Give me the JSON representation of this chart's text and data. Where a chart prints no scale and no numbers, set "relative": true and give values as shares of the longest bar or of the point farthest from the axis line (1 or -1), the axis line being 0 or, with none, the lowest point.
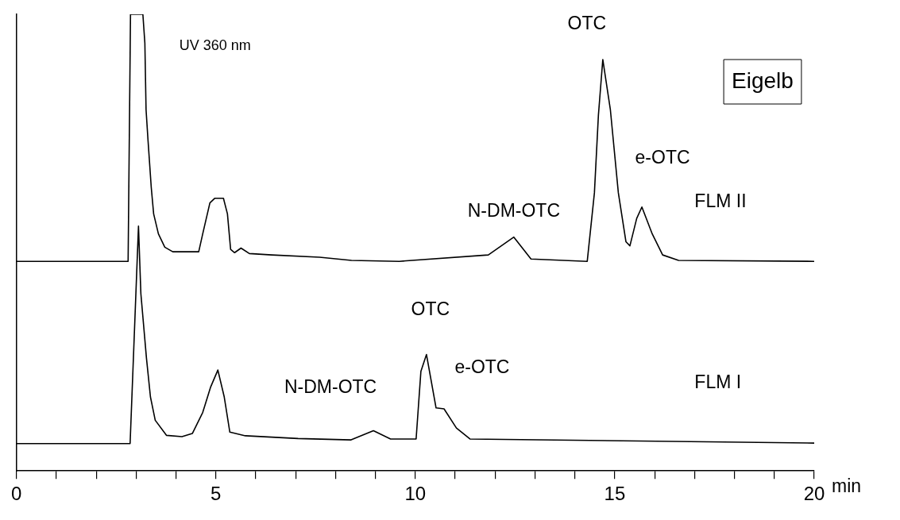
{
  "chart_data": {
    "type": "line",
    "relative": true,
    "xlabel": "min",
    "xlim": [
      0,
      20
    ],
    "xticks": [
      0,
      {
        "value": 1,
        "label": null
      },
      {
        "value": 2,
        "label": null
      },
      {
        "value": 3,
        "label": null
      },
      {
        "value": 4,
        "label": null
      },
      5,
      {
        "value": 6,
        "label": null
      },
      {
        "value": 7,
        "label": null
      },
      {
        "value": 8,
        "label": null
      },
      {
        "value": 9,
        "label": null
      },
      10,
      {
        "value": 11,
        "label": null
      },
      {
        "value": 12,
        "label": null
      },
      {
        "value": 13,
        "label": null
      },
      {
        "value": 14,
        "label": null
      },
      15,
      {
        "value": 16,
        "label": null
      },
      {
        "value": 17,
        "label": null
      },
      {
        "value": 18,
        "label": null
      },
      {
        "value": 19,
        "label": null
      },
      20
    ],
    "grid": false,
    "legend": false,
    "marker": "none",
    "series": [
      {
        "name": "FLM II",
        "color": "#000000",
        "x": [
          0,
          2.8,
          2.86,
          3.17,
          3.22,
          3.25,
          3.3,
          3.38,
          3.44,
          3.56,
          3.72,
          3.92,
          4.57,
          4.67,
          4.85,
          4.97,
          5.19,
          5.29,
          5.37,
          5.47,
          5.63,
          5.84,
          6.4,
          7.6,
          8.4,
          9.6,
          11.83,
          12.47,
          12.9,
          14.31,
          14.49,
          14.59,
          14.7,
          14.89,
          15.09,
          15.28,
          15.38,
          15.55,
          15.68,
          15.94,
          16.2,
          16.6,
          20
        ],
        "values": [
          0.459,
          0.459,
          1,
          1,
          0.937,
          0.791,
          0.723,
          0.621,
          0.563,
          0.519,
          0.49,
          0.48,
          0.48,
          0.519,
          0.587,
          0.597,
          0.597,
          0.563,
          0.485,
          0.478,
          0.488,
          0.476,
          0.473,
          0.468,
          0.461,
          0.459,
          0.473,
          0.512,
          0.464,
          0.459,
          0.609,
          0.779,
          0.901,
          0.791,
          0.609,
          0.502,
          0.493,
          0.553,
          0.578,
          0.519,
          0.473,
          0.461,
          0.459
        ]
      },
      {
        "name": "FLM I",
        "color": "#000000",
        "x": [
          0,
          2.85,
          3.06,
          3.12,
          3.26,
          3.36,
          3.48,
          3.76,
          4.15,
          4.41,
          4.67,
          4.87,
          5.05,
          5.21,
          5.35,
          5.74,
          7.06,
          8.39,
          8.95,
          9.38,
          10.02,
          10.14,
          10.28,
          10.52,
          10.72,
          11.03,
          11.37,
          20
        ],
        "values": [
          0.06,
          0.06,
          0.536,
          0.388,
          0.247,
          0.162,
          0.111,
          0.078,
          0.075,
          0.082,
          0.128,
          0.184,
          0.221,
          0.162,
          0.085,
          0.077,
          0.071,
          0.068,
          0.088,
          0.07,
          0.07,
          0.218,
          0.255,
          0.138,
          0.136,
          0.094,
          0.07,
          0.061
        ]
      }
    ],
    "annotations": [
      "UV 360 nm",
      "Eigelb",
      {
        "text": "OTC",
        "x": 14.7,
        "y": 0.901
      },
      {
        "text": "e-OTC",
        "x": 15.68,
        "y": 0.578
      },
      {
        "text": "N-DM-OTC",
        "x": 12.47,
        "y": 0.512
      },
      {
        "text": "OTC",
        "x": 10.28,
        "y": 0.255
      },
      {
        "text": "e-OTC",
        "x": 10.52,
        "y": 0.138
      },
      {
        "text": "N-DM-OTC",
        "x": 8.95,
        "y": 0.088
      }
    ]
  }
}
